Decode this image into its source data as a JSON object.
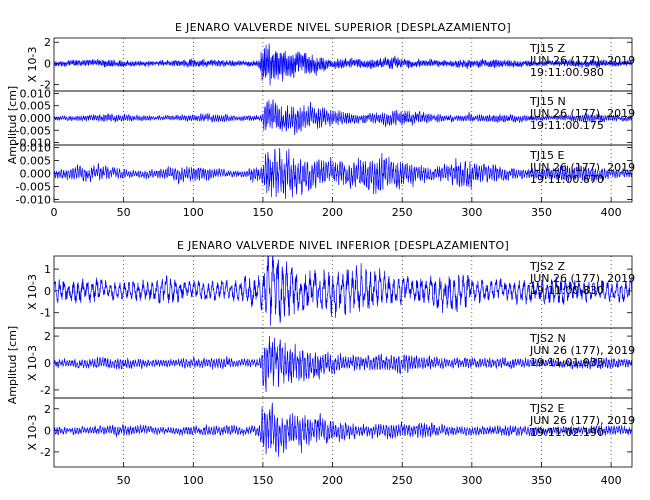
{
  "chart_data": [
    {
      "type": "line",
      "title": "E JENARO VALVERDE NIVEL SUPERIOR [DESPLAZAMIENTO]",
      "ylabel": "Amplitud [cm]",
      "xlim": [
        0,
        415
      ],
      "xticks": [
        0,
        50,
        100,
        150,
        200,
        250,
        300,
        350,
        400
      ],
      "series": [
        {
          "station": "TJ15",
          "component": "Z",
          "date": "JUN 26 (177), 2019",
          "time": "19:11:00.980",
          "ylim": [
            -2.6,
            2.4
          ],
          "yticks": [
            -2,
            0,
            2
          ],
          "yticklabels": [
            "-2",
            "0",
            "2"
          ],
          "scale_label": "X 10-3",
          "noise": 0.25,
          "burst": 1.9,
          "peak": 149,
          "decay": 0.035,
          "freq": 3.5,
          "coda": 0.3,
          "seed": 11
        },
        {
          "station": "TJ15",
          "component": "N",
          "date": "JUN 26 (177), 2019",
          "time": "19:11:00.175",
          "ylim": [
            -0.011,
            0.011
          ],
          "yticks": [
            -0.01,
            -0.005,
            0.0,
            0.005,
            0.01
          ],
          "yticklabels": [
            "-0.010",
            "-0.005",
            "0.000",
            "0.005",
            "0.010"
          ],
          "scale_label": "",
          "noise": 0.0008,
          "burst": 0.0065,
          "peak": 151,
          "decay": 0.025,
          "freq": 2.7,
          "coda": 0.0022,
          "seed": 23
        },
        {
          "station": "TJ15",
          "component": "E",
          "date": "JUN 26 (177), 2019",
          "time": "19:11:00.670",
          "ylim": [
            -0.011,
            0.011
          ],
          "yticks": [
            -0.01,
            -0.005,
            0.0,
            0.005,
            0.01
          ],
          "yticklabels": [
            "-0.010",
            "-0.005",
            "0.000",
            "0.005",
            "0.010"
          ],
          "scale_label": "",
          "noise": 0.0012,
          "burst": 0.0055,
          "peak": 152,
          "decay": 0.012,
          "freq": 2.4,
          "coda": 0.0045,
          "seed": 37
        }
      ]
    },
    {
      "type": "line",
      "title": "E JENARO VALVERDE NIVEL INFERIOR [DESPLAZAMIENTO]",
      "ylabel": "Amplitud [cm]",
      "xlim": [
        0,
        415
      ],
      "xticks": [
        50,
        100,
        150,
        200,
        250,
        300,
        350,
        400
      ],
      "series": [
        {
          "station": "TJS2",
          "component": "Z",
          "date": "JUN 26 (177), 2019",
          "time": "19:11:00.830",
          "ylim": [
            -1.7,
            1.6
          ],
          "yticks": [
            -1,
            0,
            1
          ],
          "yticklabels": [
            "-1",
            "0",
            "1"
          ],
          "scale_label": "X 10-3",
          "noise": 0.45,
          "burst": 1.1,
          "peak": 152,
          "decay": 0.02,
          "freq": 1.2,
          "coda": 0.45,
          "seed": 51
        },
        {
          "station": "TJS2",
          "component": "N",
          "date": "JUN 26 (177), 2019",
          "time": "19:11:01.935",
          "ylim": [
            -2.6,
            2.6
          ],
          "yticks": [
            -2,
            0,
            2
          ],
          "yticklabels": [
            "-2",
            "0",
            "2"
          ],
          "scale_label": "X 10-3",
          "noise": 0.3,
          "burst": 2.1,
          "peak": 150,
          "decay": 0.03,
          "freq": 2.2,
          "coda": 0.35,
          "seed": 67
        },
        {
          "station": "TJS2",
          "component": "E",
          "date": "JUN 26 (177), 2019",
          "time": "19:11:02.190",
          "ylim": [
            -3.4,
            3.0
          ],
          "yticks": [
            -2,
            0,
            2
          ],
          "yticklabels": [
            "-2",
            "0",
            "2"
          ],
          "scale_label": "X 10-3",
          "noise": 0.35,
          "burst": 2.6,
          "peak": 149,
          "decay": 0.03,
          "freq": 2.2,
          "coda": 0.4,
          "seed": 79
        }
      ]
    }
  ]
}
